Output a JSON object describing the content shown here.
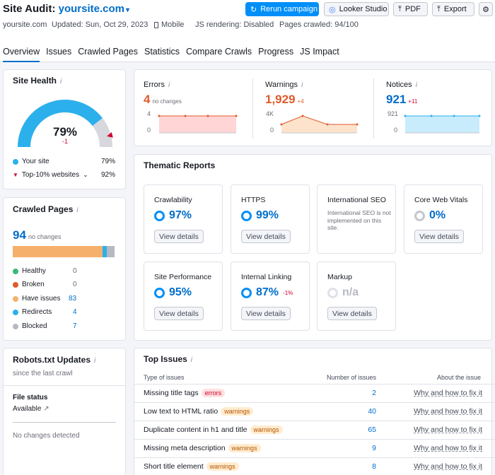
{
  "header": {
    "title_prefix": "Site Audit:",
    "domain": "yoursite.com",
    "buttons": {
      "rerun": "Rerun campaign",
      "looker": "Looker Studio",
      "pdf": "PDF",
      "export": "Export"
    },
    "meta": {
      "site": "yoursite.com",
      "updated": "Updated: Sun, Oct 29, 2023",
      "device": "Mobile",
      "js": "JS rendering: Disabled",
      "pages": "Pages crawled: 94/100"
    }
  },
  "tabs": [
    "Overview",
    "Issues",
    "Crawled Pages",
    "Statistics",
    "Compare Crawls",
    "Progress",
    "JS Impact"
  ],
  "site_health": {
    "title": "Site Health",
    "value": "79%",
    "change": "-1",
    "score": 79,
    "top10_score": 92,
    "legend": [
      {
        "label": "Your site",
        "value": "79%",
        "color": "#2bb0ec"
      },
      {
        "label": "Top-10% websites",
        "value": "92%",
        "color": "#d1002f"
      }
    ]
  },
  "crawled_pages": {
    "title": "Crawled Pages",
    "count": "94",
    "note": "no changes",
    "bar": {
      "have_issues": 83,
      "redirects": 4,
      "blocked": 7,
      "total": 94
    },
    "rows": [
      {
        "label": "Healthy",
        "value": "0",
        "color": "#3ab87a"
      },
      {
        "label": "Broken",
        "value": "0",
        "color": "#e05a2b"
      },
      {
        "label": "Have issues",
        "value": "83",
        "color": "#f5b16b"
      },
      {
        "label": "Redirects",
        "value": "4",
        "color": "#2bb0ec"
      },
      {
        "label": "Blocked",
        "value": "7",
        "color": "#b7b9c2"
      }
    ]
  },
  "robots": {
    "title": "Robots.txt Updates",
    "subtitle": "since the last crawl",
    "file_status_label": "File status",
    "file_status": "Available",
    "no_changes": "No changes detected"
  },
  "metrics": [
    {
      "label": "Errors",
      "value": "4",
      "note": "no changes",
      "color": "#e05a2b",
      "axis_top": "4",
      "axis_bottom": "0"
    },
    {
      "label": "Warnings",
      "value": "1,929",
      "note": "+4",
      "color": "#e05a2b",
      "axis_top": "4K",
      "axis_bottom": "0"
    },
    {
      "label": "Notices",
      "value": "921",
      "note": "+11",
      "color": "#006dca",
      "axis_top": "921",
      "axis_bottom": "0"
    }
  ],
  "thematic": {
    "title": "Thematic Reports",
    "view_label": "View details",
    "reports": [
      {
        "name": "Crawlability",
        "value": "97%",
        "score": 97
      },
      {
        "name": "HTTPS",
        "value": "99%",
        "score": 99
      },
      {
        "name": "International SEO",
        "note": "International SEO is not implemented on this site."
      },
      {
        "name": "Core Web Vitals",
        "value": "0%",
        "score": 0
      },
      {
        "name": "Site Performance",
        "value": "95%",
        "score": 95
      },
      {
        "name": "Internal Linking",
        "value": "87%",
        "change": "-1%",
        "score": 87
      },
      {
        "name": "Markup",
        "value": "n/a"
      }
    ]
  },
  "top_issues": {
    "title": "Top Issues",
    "columns": [
      "Type of issues",
      "Number of issues",
      "About the issue"
    ],
    "rows": [
      {
        "issue": "Missing title tags",
        "type": "errors",
        "count": "2",
        "link": "Why and how to fix it"
      },
      {
        "issue": "Low text to HTML ratio",
        "type": "warnings",
        "count": "40",
        "link": "Why and how to fix it"
      },
      {
        "issue": "Duplicate content in h1 and title",
        "type": "warnings",
        "count": "65",
        "link": "Why and how to fix it"
      },
      {
        "issue": "Missing meta description",
        "type": "warnings",
        "count": "9",
        "link": "Why and how to fix it"
      },
      {
        "issue": "Short title element",
        "type": "warnings",
        "count": "8",
        "link": "Why and how to fix it"
      }
    ]
  }
}
